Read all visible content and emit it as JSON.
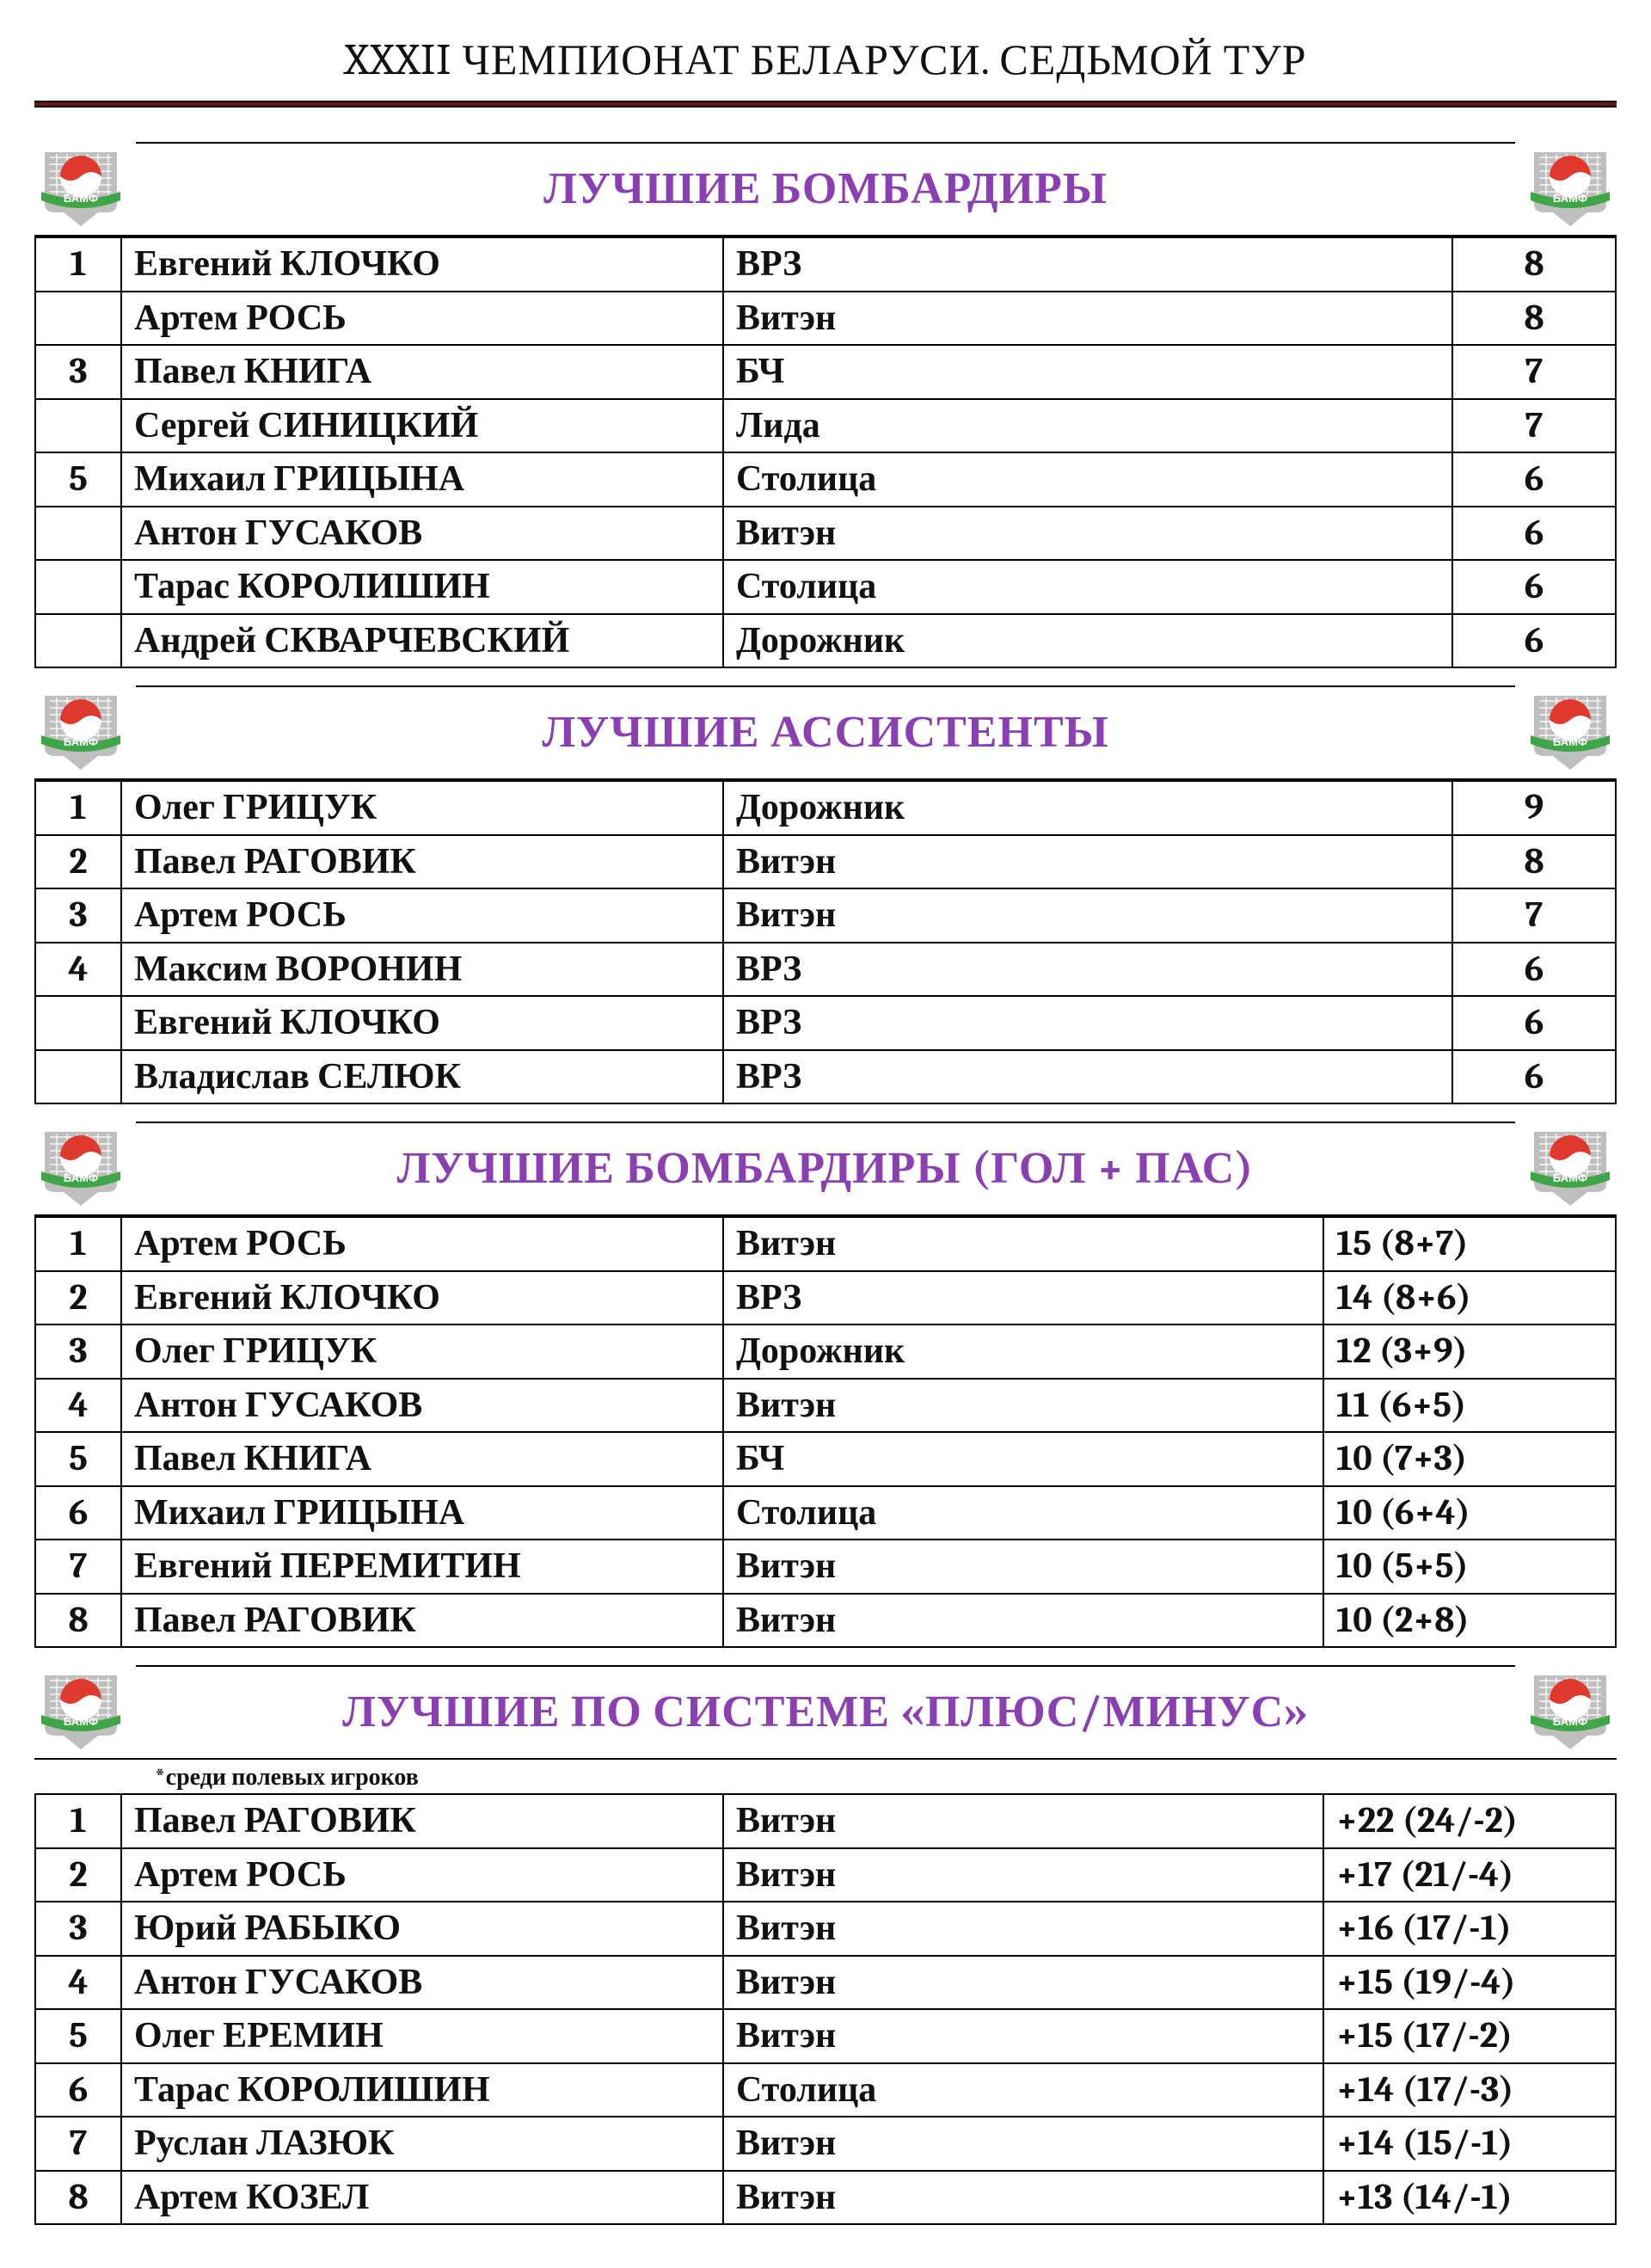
{
  "page_title": "XXXII ЧЕМПИОНАТ БЕЛАРУСИ. СЕДЬМОЙ ТУР",
  "logo": {
    "ball_red": "#e03a2f",
    "ball_white": "#ffffff",
    "net_gray": "#bfbfbf",
    "ribbon_green": "#3fa648",
    "text_green": "#2a8a34",
    "label": "БАМФ"
  },
  "sections": [
    {
      "title": "ЛУЧШИЕ БОМБАРДИРЫ",
      "stat_style": "narrow",
      "rows": [
        {
          "rank": "1",
          "player": "Евгений КЛОЧКО",
          "team": "ВРЗ",
          "stat": "8"
        },
        {
          "rank": "",
          "player": "Артем РОСЬ",
          "team": "Витэн",
          "stat": "8"
        },
        {
          "rank": "3",
          "player": "Павел КНИГА",
          "team": "БЧ",
          "stat": "7"
        },
        {
          "rank": "",
          "player": "Сергей СИНИЦКИЙ",
          "team": "Лида",
          "stat": "7"
        },
        {
          "rank": "5",
          "player": "Михаил ГРИЦЫНА",
          "team": "Столица",
          "stat": "6"
        },
        {
          "rank": "",
          "player": "Антон ГУСАКОВ",
          "team": "Витэн",
          "stat": "6"
        },
        {
          "rank": "",
          "player": "Тарас КОРОЛИШИН",
          "team": "Столица",
          "stat": "6"
        },
        {
          "rank": "",
          "player": "Андрей СКВАРЧЕВСКИЙ",
          "team": "Дорожник",
          "stat": "6"
        }
      ]
    },
    {
      "title": "ЛУЧШИЕ АССИСТЕНТЫ",
      "stat_style": "narrow",
      "rows": [
        {
          "rank": "1",
          "player": "Олег ГРИЦУК",
          "team": "Дорожник",
          "stat": "9"
        },
        {
          "rank": "2",
          "player": "Павел РАГОВИК",
          "team": "Витэн",
          "stat": "8"
        },
        {
          "rank": "3",
          "player": "Артем РОСЬ",
          "team": "Витэн",
          "stat": "7"
        },
        {
          "rank": "4",
          "player": "Максим ВОРОНИН",
          "team": "ВРЗ",
          "stat": "6"
        },
        {
          "rank": "",
          "player": "Евгений КЛОЧКО",
          "team": "ВРЗ",
          "stat": "6"
        },
        {
          "rank": "",
          "player": "Владислав СЕЛЮК",
          "team": "ВРЗ",
          "stat": "6"
        }
      ]
    },
    {
      "title": "ЛУЧШИЕ БОМБАРДИРЫ (ГОЛ + ПАС)",
      "stat_style": "wide",
      "rows": [
        {
          "rank": "1",
          "player": "Артем РОСЬ",
          "team": "Витэн",
          "stat": "15 (8+7)"
        },
        {
          "rank": "2",
          "player": "Евгений КЛОЧКО",
          "team": "ВРЗ",
          "stat": "14 (8+6)"
        },
        {
          "rank": "3",
          "player": "Олег ГРИЦУК",
          "team": "Дорожник",
          "stat": "12 (3+9)"
        },
        {
          "rank": "4",
          "player": "Антон ГУСАКОВ",
          "team": "Витэн",
          "stat": "11 (6+5)"
        },
        {
          "rank": "5",
          "player": "Павел КНИГА",
          "team": "БЧ",
          "stat": "10 (7+3)"
        },
        {
          "rank": "6",
          "player": "Михаил ГРИЦЫНА",
          "team": "Столица",
          "stat": "10 (6+4)"
        },
        {
          "rank": "7",
          "player": "Евгений ПЕРЕМИТИН",
          "team": "Витэн",
          "stat": "10 (5+5)"
        },
        {
          "rank": "8",
          "player": "Павел РАГОВИК",
          "team": "Витэн",
          "stat": "10 (2+8)"
        }
      ]
    },
    {
      "title": "ЛУЧШИЕ ПО СИСТЕМЕ «ПЛЮС/МИНУС»",
      "subnote": "*среди полевых игроков",
      "stat_style": "wide",
      "rows": [
        {
          "rank": "1",
          "player": "Павел РАГОВИК",
          "team": "Витэн",
          "stat": "+22 (24/-2)"
        },
        {
          "rank": "2",
          "player": "Артем РОСЬ",
          "team": "Витэн",
          "stat": "+17 (21/-4)"
        },
        {
          "rank": "3",
          "player": "Юрий РАБЫКО",
          "team": "Витэн",
          "stat": "+16 (17/-1)"
        },
        {
          "rank": "4",
          "player": "Антон ГУСАКОВ",
          "team": "Витэн",
          "stat": "+15 (19/-4)"
        },
        {
          "rank": "5",
          "player": "Олег ЕРЕМИН",
          "team": "Витэн",
          "stat": "+15 (17/-2)"
        },
        {
          "rank": "6",
          "player": "Тарас КОРОЛИШИН",
          "team": "Столица",
          "stat": "+14 (17/-3)"
        },
        {
          "rank": "7",
          "player": "Руслан ЛАЗЮК",
          "team": "Витэн",
          "stat": "+14 (15/-1)"
        },
        {
          "rank": "8",
          "player": "Артем КОЗЕЛ",
          "team": "Витэн",
          "stat": "+13 (14/-1)"
        }
      ]
    }
  ]
}
